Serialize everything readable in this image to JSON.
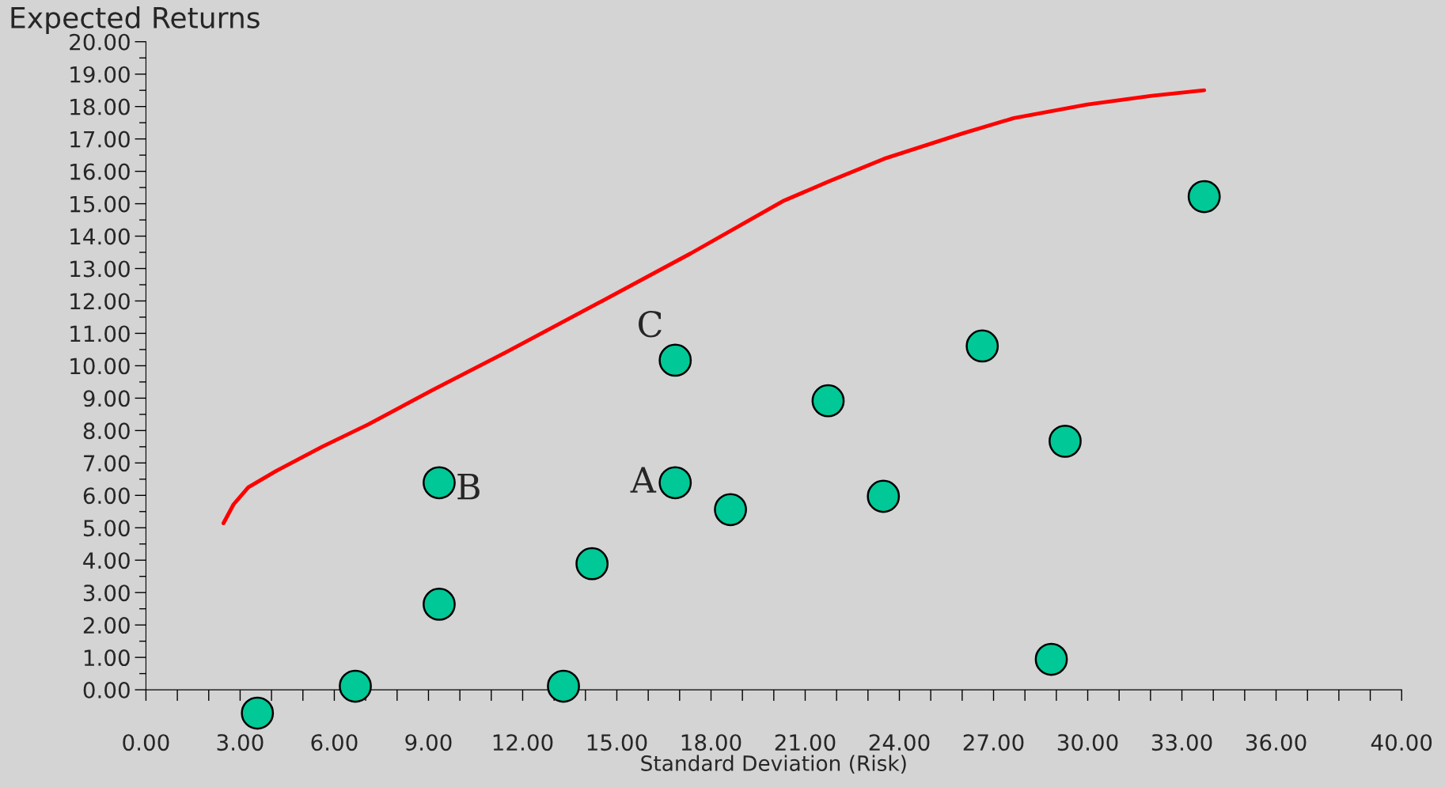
{
  "chart_data": {
    "type": "scatter",
    "title": "Expected Returns",
    "xlabel": "Standard Deviation (Risk)",
    "xlim": [
      0,
      40
    ],
    "ylim": [
      -3,
      20
    ],
    "xticks": [
      {
        "value": 0,
        "label": "0.00"
      },
      {
        "value": 3,
        "label": "3.00"
      },
      {
        "value": 6,
        "label": "6.00"
      },
      {
        "value": 9,
        "label": "9.00"
      },
      {
        "value": 12,
        "label": "12.00"
      },
      {
        "value": 15,
        "label": "15.00"
      },
      {
        "value": 18,
        "label": "18.00"
      },
      {
        "value": 21,
        "label": "21.00"
      },
      {
        "value": 24,
        "label": "24.00"
      },
      {
        "value": 27,
        "label": "27.00"
      },
      {
        "value": 30,
        "label": "30.00"
      },
      {
        "value": 33,
        "label": "33.00"
      },
      {
        "value": 36,
        "label": "36.00"
      },
      {
        "value": 40,
        "label": "40.00"
      }
    ],
    "yticks": [
      {
        "value": 0,
        "label": "0.00"
      },
      {
        "value": 1,
        "label": "1.00"
      },
      {
        "value": 2,
        "label": "2.00"
      },
      {
        "value": 3,
        "label": "3.00"
      },
      {
        "value": 4,
        "label": "4.00"
      },
      {
        "value": 5,
        "label": "5.00"
      },
      {
        "value": 6,
        "label": "6.00"
      },
      {
        "value": 7,
        "label": "7.00"
      },
      {
        "value": 8,
        "label": "8.00"
      },
      {
        "value": 9,
        "label": "9.00"
      },
      {
        "value": 10,
        "label": "10.00"
      },
      {
        "value": 11,
        "label": "11.00"
      },
      {
        "value": 12,
        "label": "12.00"
      },
      {
        "value": 13,
        "label": "13.00"
      },
      {
        "value": 14,
        "label": "14.00"
      },
      {
        "value": 15,
        "label": "15.00"
      },
      {
        "value": 16,
        "label": "16.00"
      },
      {
        "value": 17,
        "label": "17.00"
      },
      {
        "value": 18,
        "label": "18.00"
      },
      {
        "value": 19,
        "label": "19.00"
      },
      {
        "value": 20,
        "label": "20.00"
      }
    ],
    "legend": false,
    "series": [
      {
        "type": "line",
        "color": "#ff0000",
        "line_style": "solid",
        "marker": "none",
        "x": [
          2.47,
          2.79,
          3.26,
          4.14,
          5.61,
          7.08,
          9.13,
          11.48,
          14.42,
          17.36,
          20.29,
          21.76,
          23.52,
          26.02,
          27.64,
          29.99,
          32.04,
          33.71
        ],
        "values": [
          5.14,
          5.72,
          6.25,
          6.75,
          7.5,
          8.19,
          9.25,
          10.42,
          11.94,
          13.47,
          15.08,
          15.69,
          16.39,
          17.17,
          17.64,
          18.06,
          18.33,
          18.5
        ]
      },
      {
        "type": "scatter",
        "color": "#00c896",
        "marker": "circle",
        "x": [
          3.55,
          6.67,
          9.34,
          9.34,
          13.3,
          14.21,
          16.86,
          16.86,
          18.62,
          21.73,
          23.49,
          26.64,
          28.84,
          29.28,
          33.71
        ],
        "values": [
          -0.72,
          0.11,
          2.64,
          6.39,
          0.11,
          3.89,
          10.17,
          6.39,
          5.56,
          8.92,
          5.97,
          10.61,
          0.94,
          7.67,
          15.22
        ]
      }
    ],
    "annotations": [
      "C",
      "B",
      "A"
    ]
  }
}
